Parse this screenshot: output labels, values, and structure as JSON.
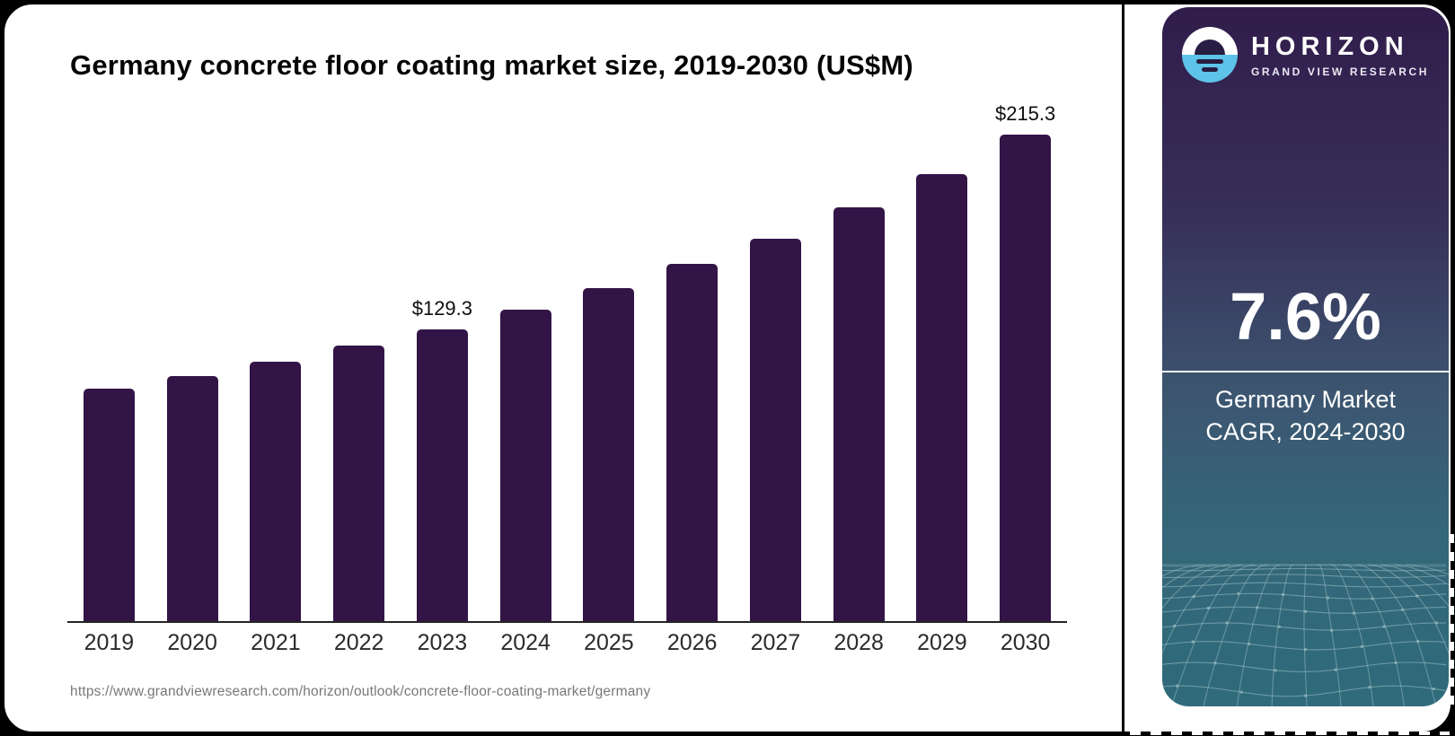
{
  "chart_data": {
    "type": "bar",
    "title": "Germany concrete floor coating market size, 2019-2030 (US$M)",
    "categories": [
      "2019",
      "2020",
      "2021",
      "2022",
      "2023",
      "2024",
      "2025",
      "2026",
      "2027",
      "2028",
      "2029",
      "2030"
    ],
    "values": [
      102.8,
      108.4,
      114.7,
      121.9,
      129.3,
      137.7,
      147.3,
      158.0,
      169.1,
      183.0,
      197.7,
      215.3
    ],
    "data_labels": {
      "2023": "$129.3",
      "2030": "$215.3"
    },
    "unit": "US$M",
    "ylim": [
      0,
      230
    ],
    "grid": false,
    "legend": false,
    "bar_color": "#331447",
    "axis_color": "#242424"
  },
  "footer": {
    "source_url": "https://www.grandviewresearch.com/horizon/outlook/concrete-floor-coating-market/germany"
  },
  "sidebar": {
    "brand": "HORIZON",
    "brand_sub": "GRAND VIEW RESEARCH",
    "stat_value": "7.6%",
    "stat_caption_line1": "Germany Market",
    "stat_caption_line2": "CAGR, 2024-2030",
    "colors": {
      "gradient_top": "#311c4b",
      "gradient_bottom": "#2f6b7a",
      "logo_blue": "#5ec3e8",
      "mesh_line": "#9dbfc6"
    }
  }
}
